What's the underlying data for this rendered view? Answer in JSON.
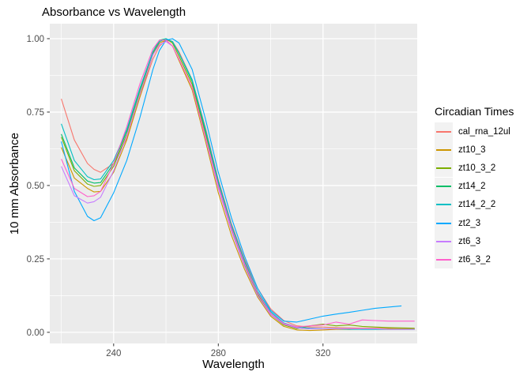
{
  "chart_data": {
    "type": "line",
    "title": "Absorbance vs Wavelength",
    "xlabel": "Wavelength",
    "ylabel": "10 mm Absorbance",
    "legend_position": "right",
    "grid": true,
    "panel_bg": "#EBEBEB",
    "grid_color": "#FFFFFF",
    "axis_text_color": "#4D4D4D",
    "tick_mark_color": "#333333",
    "xlim": [
      215.6,
      356.0
    ],
    "ylim": [
      -0.038,
      1.051
    ],
    "x_ticks": {
      "labels": [
        "240",
        "280",
        "320"
      ],
      "values": [
        240,
        280,
        320
      ]
    },
    "x_minor_ticks": [
      220,
      260,
      300,
      340
    ],
    "y_ticks": {
      "labels": [
        "0.00",
        "0.25",
        "0.50",
        "0.75",
        "1.00"
      ],
      "values": [
        0,
        0.25,
        0.5,
        0.75,
        1.0
      ]
    },
    "y_minor_ticks": [
      0.125,
      0.375,
      0.625,
      0.875
    ],
    "x": [
      220,
      225,
      230,
      232.5,
      235,
      240,
      245,
      250,
      255,
      257.5,
      260,
      262.5,
      265,
      270,
      275,
      280,
      285,
      290,
      295,
      300,
      305,
      310,
      315,
      320,
      325,
      330,
      335,
      340,
      345,
      350,
      355
    ],
    "series": [
      {
        "name": "cal_rna_12ul",
        "color": "#F8766D",
        "values": [
          0.795,
          0.655,
          0.575,
          0.555,
          0.545,
          0.575,
          0.66,
          0.8,
          0.93,
          0.975,
          0.995,
          0.99,
          0.955,
          0.86,
          0.7,
          0.52,
          0.37,
          0.25,
          0.15,
          0.08,
          0.04,
          0.022,
          0.018,
          0.018,
          0.016,
          0.015,
          0.014,
          0.014,
          0.013,
          0.012,
          0.012
        ]
      },
      {
        "name": "zt10_3",
        "color": "#CD9600",
        "values": [
          0.63,
          0.525,
          0.49,
          0.478,
          0.48,
          0.545,
          0.655,
          0.8,
          0.945,
          0.985,
          0.995,
          0.975,
          0.925,
          0.825,
          0.655,
          0.475,
          0.33,
          0.215,
          0.12,
          0.055,
          0.02,
          0.008,
          0.006,
          0.008,
          0.01,
          0.01,
          0.012,
          0.012,
          0.012,
          0.012,
          0.012
        ]
      },
      {
        "name": "zt10_3_2",
        "color": "#7CAE00",
        "values": [
          0.665,
          0.55,
          0.505,
          0.497,
          0.5,
          0.565,
          0.675,
          0.815,
          0.95,
          0.99,
          1.0,
          0.985,
          0.94,
          0.845,
          0.68,
          0.5,
          0.35,
          0.23,
          0.13,
          0.06,
          0.025,
          0.012,
          0.022,
          0.028,
          0.022,
          0.025,
          0.02,
          0.018,
          0.016,
          0.015,
          0.014
        ]
      },
      {
        "name": "zt14_2",
        "color": "#00BE67",
        "values": [
          0.675,
          0.56,
          0.515,
          0.508,
          0.51,
          0.575,
          0.685,
          0.825,
          0.955,
          0.995,
          1.0,
          0.99,
          0.95,
          0.855,
          0.69,
          0.51,
          0.36,
          0.24,
          0.135,
          0.065,
          0.03,
          0.015,
          0.012,
          0.012,
          0.012,
          0.01,
          0.01,
          0.01,
          0.01,
          0.01,
          0.01
        ]
      },
      {
        "name": "zt14_2_2",
        "color": "#00BFC4",
        "values": [
          0.71,
          0.585,
          0.53,
          0.52,
          0.522,
          0.585,
          0.69,
          0.83,
          0.955,
          0.99,
          1.0,
          0.99,
          0.95,
          0.86,
          0.695,
          0.515,
          0.365,
          0.245,
          0.14,
          0.07,
          0.032,
          0.018,
          0.014,
          0.012,
          0.012,
          0.012,
          0.01,
          0.01,
          0.01,
          0.01,
          0.01
        ]
      },
      {
        "name": "zt2_3",
        "color": "#00A9FF",
        "values": [
          0.65,
          0.48,
          0.395,
          0.38,
          0.39,
          0.475,
          0.585,
          0.73,
          0.895,
          0.96,
          0.995,
          1.0,
          0.985,
          0.895,
          0.73,
          0.545,
          0.39,
          0.26,
          0.15,
          0.075,
          0.038,
          0.035,
          0.045,
          0.055,
          0.062,
          0.068,
          0.075,
          0.082,
          0.086,
          0.09,
          null
        ]
      },
      {
        "name": "zt6_3",
        "color": "#C77CFF",
        "values": [
          0.565,
          0.465,
          0.44,
          0.445,
          0.46,
          0.55,
          0.67,
          0.81,
          0.945,
          0.98,
          0.99,
          0.975,
          0.93,
          0.835,
          0.665,
          0.49,
          0.345,
          0.225,
          0.125,
          0.06,
          0.028,
          0.015,
          0.012,
          0.012,
          0.012,
          0.012,
          0.012,
          0.012,
          0.01,
          0.01,
          0.01
        ]
      },
      {
        "name": "zt6_3_2",
        "color": "#FF61CC",
        "values": [
          0.59,
          0.49,
          0.462,
          0.465,
          0.48,
          0.575,
          0.7,
          0.845,
          0.965,
          0.995,
          0.995,
          0.975,
          0.93,
          0.835,
          0.67,
          0.5,
          0.355,
          0.235,
          0.135,
          0.065,
          0.03,
          0.018,
          0.022,
          0.025,
          0.035,
          0.028,
          0.042,
          0.04,
          0.038,
          0.038,
          0.038
        ]
      }
    ]
  },
  "legend": {
    "title": "Circadian Times"
  }
}
